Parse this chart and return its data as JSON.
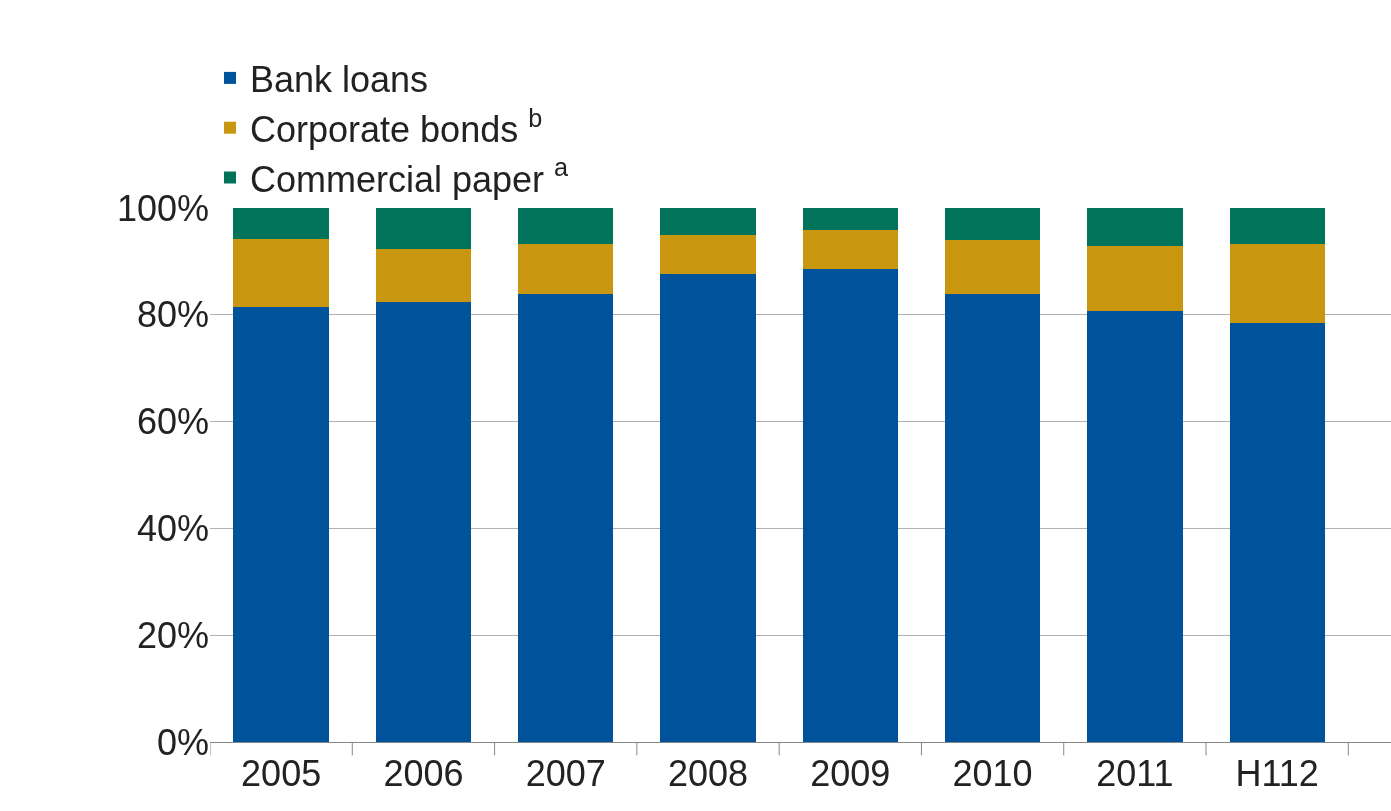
{
  "chart_data": {
    "type": "bar",
    "stacked": true,
    "categories": [
      "2005",
      "2006",
      "2007",
      "2008",
      "2009",
      "2010",
      "2011",
      "H112"
    ],
    "series": [
      {
        "name": "Bank loans",
        "color": "#00529b",
        "values": [
          81.5,
          82.4,
          83.9,
          87.6,
          88.6,
          83.9,
          80.7,
          78.5
        ]
      },
      {
        "name": "Corporate bonds $^{b}$",
        "color": "#c8960f",
        "values": [
          12.7,
          9.9,
          9.4,
          7.3,
          7.3,
          10.1,
          12.2,
          14.8
        ]
      },
      {
        "name": "Commercial paper $^{a}$",
        "color": "#00735a",
        "values": [
          5.8,
          7.7,
          6.7,
          5.1,
          4.1,
          6.0,
          7.1,
          6.7
        ]
      }
    ],
    "ylim": [
      0,
      100
    ],
    "yticks": [
      {
        "value": 0,
        "label": "0%"
      },
      {
        "value": 20,
        "label": "20%"
      },
      {
        "value": 40,
        "label": "40%"
      },
      {
        "value": 60,
        "label": "60%"
      },
      {
        "value": 80,
        "label": "80%"
      },
      {
        "value": 100,
        "label": "100%"
      }
    ],
    "grid": "y",
    "legend": "top left"
  }
}
